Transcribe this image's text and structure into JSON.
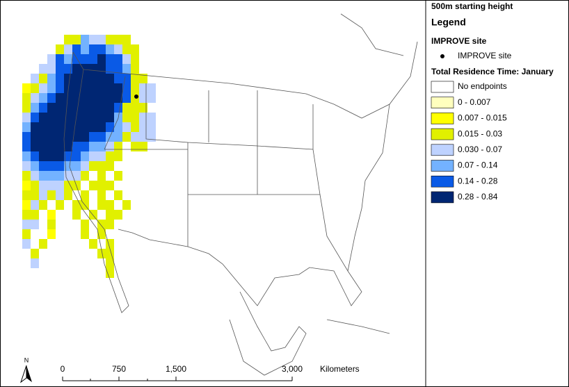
{
  "title": "500m starting height",
  "legend": {
    "title": "Legend",
    "site_group": "IMPROVE site",
    "site_label": "IMPROVE site",
    "residence_title": "Total Residence Time: January",
    "classes": [
      {
        "label": "No endpoints",
        "color": "#ffffff"
      },
      {
        "label": "0 - 0.007",
        "color": "#ffffbe"
      },
      {
        "label": "0.007 - 0.015",
        "color": "#ffff00"
      },
      {
        "label": "0.015 - 0.03",
        "color": "#e1f000"
      },
      {
        "label": "0.030 - 0.07",
        "color": "#bed2ff"
      },
      {
        "label": "0.07 - 0.14",
        "color": "#73b2ff"
      },
      {
        "label": "0.14 - 0.28",
        "color": "#0a5ae6"
      },
      {
        "label": "0.28 - 0.84",
        "color": "#002673"
      }
    ]
  },
  "scale_bar": {
    "labels": [
      "0",
      "750",
      "1,500",
      "3,000"
    ],
    "unit": "Kilometers"
  },
  "north": "N"
}
